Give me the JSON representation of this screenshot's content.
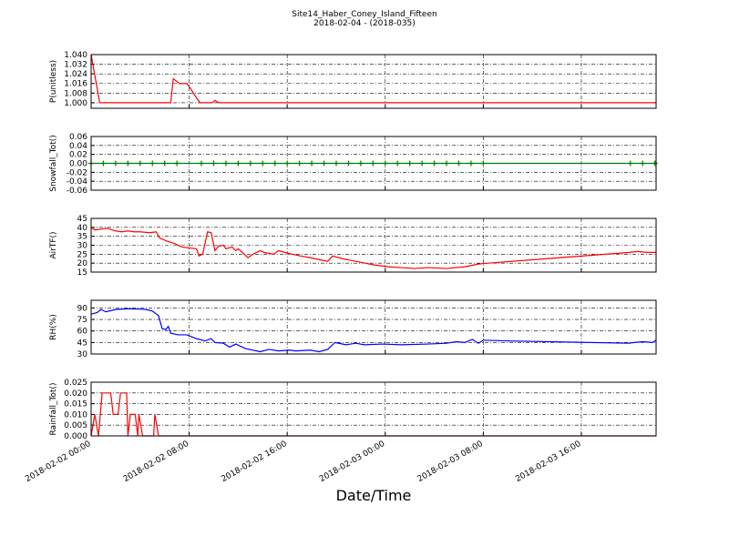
{
  "chart_data": [
    {
      "type": "line",
      "title": "Site14_Haber_Coney_Island_Fifteen",
      "subtitle": "2018-02-04 - (2018-035)",
      "ylabel": "P(unitless)",
      "color": "#ff0000",
      "x": [
        "2018-02-02 00:00",
        "2018-02-02 00:42",
        "2018-02-02 06:30",
        "2018-02-02 06:42",
        "2018-02-02 07:12",
        "2018-02-02 07:48",
        "2018-02-02 08:06",
        "2018-02-02 08:36",
        "2018-02-02 08:54",
        "2018-02-02 09:54",
        "2018-02-02 10:06",
        "2018-02-02 10:24",
        "2018-02-03 22:06"
      ],
      "values": [
        1.04,
        1.0,
        1.0,
        1.02,
        1.016,
        1.016,
        1.012,
        1.004,
        1.0,
        1.0,
        1.002,
        1.0,
        1.0
      ],
      "xlim": [
        "2018-02-02 00:00",
        "2018-02-03 22:06"
      ],
      "xticks": [
        "2018-02-02 00:00",
        "2018-02-02 08:00",
        "2018-02-02 16:00",
        "2018-02-03 00:00",
        "2018-02-03 08:00",
        "2018-02-03 16:00"
      ],
      "ylim": [
        0.9954,
        1.04
      ],
      "yticks": [
        {
          "value": 1.0,
          "label": "1.000"
        },
        1.008,
        1.016,
        1.024,
        1.032,
        {
          "value": 1.04,
          "label": "1.040"
        }
      ],
      "grid": true
    },
    {
      "type": "line",
      "ylabel": "Snowfall_Tot()",
      "color": "#008000",
      "marker": "+",
      "x": [
        "2018-02-02 00:00",
        "2018-02-02 01:00",
        "2018-02-02 02:00",
        "2018-02-02 03:00",
        "2018-02-02 04:00",
        "2018-02-02 05:00",
        "2018-02-02 06:00",
        "2018-02-02 07:00",
        "2018-02-02 09:00",
        "2018-02-02 10:00",
        "2018-02-02 11:00",
        "2018-02-02 12:00",
        "2018-02-02 13:00",
        "2018-02-02 14:00",
        "2018-02-02 15:00",
        "2018-02-02 16:00",
        "2018-02-02 17:00",
        "2018-02-02 18:00",
        "2018-02-02 19:00",
        "2018-02-02 20:00",
        "2018-02-02 21:00",
        "2018-02-02 22:00",
        "2018-02-02 23:00",
        "2018-02-03 00:00",
        "2018-02-03 01:00",
        "2018-02-03 02:00",
        "2018-02-03 03:00",
        "2018-02-03 04:00",
        "2018-02-03 05:00",
        "2018-02-03 06:00",
        "2018-02-03 07:00",
        "2018-02-03 08:00",
        "2018-02-03 20:00",
        "2018-02-03 21:00",
        "2018-02-03 22:00"
      ],
      "values": [
        0,
        0,
        0,
        0,
        0,
        0,
        0,
        0,
        0,
        0,
        0,
        0,
        0,
        0,
        0,
        0,
        0,
        0,
        0,
        0,
        0,
        0,
        0,
        0,
        0,
        0,
        0,
        0,
        0,
        0,
        0,
        0,
        0,
        0,
        0
      ],
      "xlim": [
        "2018-02-02 00:00",
        "2018-02-03 22:06"
      ],
      "xticks": [
        "2018-02-02 00:00",
        "2018-02-02 08:00",
        "2018-02-02 16:00",
        "2018-02-03 00:00",
        "2018-02-03 08:00",
        "2018-02-03 16:00"
      ],
      "ylim": [
        -0.06,
        0.06
      ],
      "yticks": [
        -0.06,
        -0.04,
        -0.02,
        {
          "value": 0,
          "label": "0.00"
        },
        0.02,
        0.04,
        0.06
      ],
      "grid": true
    },
    {
      "type": "line",
      "ylabel": "AirTF()",
      "color": "#ff0000",
      "x": [
        "2018-02-02 00:00",
        "2018-02-02 00:18",
        "2018-02-02 00:48",
        "2018-02-02 01:18",
        "2018-02-02 02:00",
        "2018-02-02 02:30",
        "2018-02-02 03:00",
        "2018-02-02 03:30",
        "2018-02-02 04:00",
        "2018-02-02 04:48",
        "2018-02-02 05:18",
        "2018-02-02 05:36",
        "2018-02-02 06:18",
        "2018-02-02 06:48",
        "2018-02-02 07:24",
        "2018-02-02 08:00",
        "2018-02-02 08:36",
        "2018-02-02 08:48",
        "2018-02-02 09:06",
        "2018-02-02 09:30",
        "2018-02-02 09:48",
        "2018-02-02 10:06",
        "2018-02-02 10:24",
        "2018-02-02 10:48",
        "2018-02-02 11:00",
        "2018-02-02 11:30",
        "2018-02-02 11:48",
        "2018-02-02 12:00",
        "2018-02-02 12:30",
        "2018-02-02 12:48",
        "2018-02-02 13:12",
        "2018-02-02 13:48",
        "2018-02-02 14:06",
        "2018-02-02 14:54",
        "2018-02-02 15:18",
        "2018-02-02 15:48",
        "2018-02-02 16:24",
        "2018-02-02 17:06",
        "2018-02-02 17:54",
        "2018-02-02 18:36",
        "2018-02-02 19:18",
        "2018-02-02 19:42",
        "2018-02-02 20:30",
        "2018-02-02 21:36",
        "2018-02-02 23:06",
        "2018-02-03 00:12",
        "2018-02-03 01:18",
        "2018-02-03 02:24",
        "2018-02-03 03:30",
        "2018-02-03 05:00",
        "2018-02-03 06:30",
        "2018-02-03 07:36",
        "2018-02-03 08:24",
        "2018-02-03 13:12",
        "2018-02-03 19:54",
        "2018-02-03 20:36",
        "2018-02-03 21:24",
        "2018-02-03 22:06"
      ],
      "values": [
        40,
        38.5,
        39,
        39.5,
        38,
        37.5,
        38,
        37.5,
        37.5,
        37,
        37.5,
        34,
        32,
        31,
        29,
        28.5,
        28,
        24,
        25,
        37.5,
        37,
        27,
        29.5,
        30,
        28,
        29,
        27,
        28,
        25,
        23,
        25,
        27,
        26,
        25,
        27,
        26,
        25,
        24,
        23,
        22,
        21,
        24,
        22.5,
        21,
        19,
        18,
        17.5,
        17,
        17.5,
        17,
        18,
        19.5,
        20,
        22.5,
        26,
        26.5,
        26,
        26
      ],
      "xlim": [
        "2018-02-02 00:00",
        "2018-02-03 22:06"
      ],
      "xticks": [
        "2018-02-02 00:00",
        "2018-02-02 08:00",
        "2018-02-02 16:00",
        "2018-02-03 00:00",
        "2018-02-03 08:00",
        "2018-02-03 16:00"
      ],
      "ylim": [
        15,
        45
      ],
      "yticks": [
        15,
        20,
        25,
        30,
        35,
        40,
        45
      ],
      "grid": true
    },
    {
      "type": "line",
      "ylabel": "RH(%)",
      "color": "#0000ff",
      "x": [
        "2018-02-02 00:00",
        "2018-02-02 00:30",
        "2018-02-02 00:48",
        "2018-02-02 01:12",
        "2018-02-02 02:00",
        "2018-02-02 03:00",
        "2018-02-02 04:00",
        "2018-02-02 04:30",
        "2018-02-02 05:00",
        "2018-02-02 05:30",
        "2018-02-02 05:48",
        "2018-02-02 06:06",
        "2018-02-02 06:18",
        "2018-02-02 06:30",
        "2018-02-02 07:06",
        "2018-02-02 07:48",
        "2018-02-02 08:36",
        "2018-02-02 09:18",
        "2018-02-02 09:48",
        "2018-02-02 10:06",
        "2018-02-02 10:48",
        "2018-02-02 11:18",
        "2018-02-02 11:48",
        "2018-02-02 12:36",
        "2018-02-02 13:48",
        "2018-02-02 14:30",
        "2018-02-02 15:18",
        "2018-02-02 16:12",
        "2018-02-02 16:42",
        "2018-02-02 17:54",
        "2018-02-02 18:36",
        "2018-02-02 19:18",
        "2018-02-02 19:54",
        "2018-02-02 20:48",
        "2018-02-02 21:36",
        "2018-02-02 22:18",
        "2018-02-02 23:48",
        "2018-02-03 01:18",
        "2018-02-03 03:30",
        "2018-02-03 05:00",
        "2018-02-03 05:48",
        "2018-02-03 06:30",
        "2018-02-03 07:06",
        "2018-02-03 07:36",
        "2018-02-03 08:00",
        "2018-02-03 10:12",
        "2018-02-03 19:54",
        "2018-02-03 20:18",
        "2018-02-03 21:00",
        "2018-02-03 21:48",
        "2018-02-03 22:06"
      ],
      "values": [
        82,
        84,
        88,
        85,
        88,
        89,
        88.5,
        88,
        86,
        80,
        63,
        62,
        66,
        57,
        55,
        55,
        50,
        47,
        50,
        45,
        44,
        39,
        43,
        37,
        33,
        36,
        34,
        35,
        34,
        35,
        33,
        36,
        45,
        42,
        44,
        42,
        43,
        42,
        43,
        44,
        46,
        45,
        49,
        44,
        48,
        47,
        44,
        45,
        46,
        45,
        48
      ],
      "xlim": [
        "2018-02-02 00:00",
        "2018-02-03 22:06"
      ],
      "xticks": [
        "2018-02-02 00:00",
        "2018-02-02 08:00",
        "2018-02-02 16:00",
        "2018-02-03 00:00",
        "2018-02-03 08:00",
        "2018-02-03 16:00"
      ],
      "ylim": [
        30,
        100
      ],
      "yticks": [
        30,
        45,
        60,
        75,
        90
      ],
      "grid": true
    },
    {
      "type": "line",
      "ylabel": "Rainfall_Tot()",
      "xlabel": "Date/Time",
      "color": "#ff0000",
      "x": [
        "2018-02-02 00:00",
        "2018-02-02 00:18",
        "2018-02-02 00:36",
        "2018-02-02 00:54",
        "2018-02-02 01:36",
        "2018-02-02 01:48",
        "2018-02-02 02:12",
        "2018-02-02 02:24",
        "2018-02-02 02:54",
        "2018-02-02 03:00",
        "2018-02-02 03:12",
        "2018-02-02 03:36",
        "2018-02-02 03:48",
        "2018-02-02 03:54",
        "2018-02-02 04:12",
        "2018-02-02 05:06",
        "2018-02-02 05:12",
        "2018-02-02 05:30",
        "2018-02-03 22:06"
      ],
      "values": [
        0,
        0.01,
        0,
        0.02,
        0.02,
        0.01,
        0.01,
        0.02,
        0.02,
        0,
        0.01,
        0.01,
        0,
        0.01,
        0,
        0,
        0.01,
        0,
        0
      ],
      "xlim": [
        "2018-02-02 00:00",
        "2018-02-03 22:06"
      ],
      "xticks": [
        "2018-02-02 00:00",
        "2018-02-02 08:00",
        "2018-02-02 16:00",
        "2018-02-03 00:00",
        "2018-02-03 08:00",
        "2018-02-03 16:00"
      ],
      "ylim": [
        0,
        0.025
      ],
      "yticks": [
        {
          "value": 0,
          "label": "0.000"
        },
        0.005,
        {
          "value": 0.01,
          "label": "0.010"
        },
        0.015,
        {
          "value": 0.02,
          "label": "0.020"
        },
        0.025
      ],
      "grid": true
    }
  ]
}
